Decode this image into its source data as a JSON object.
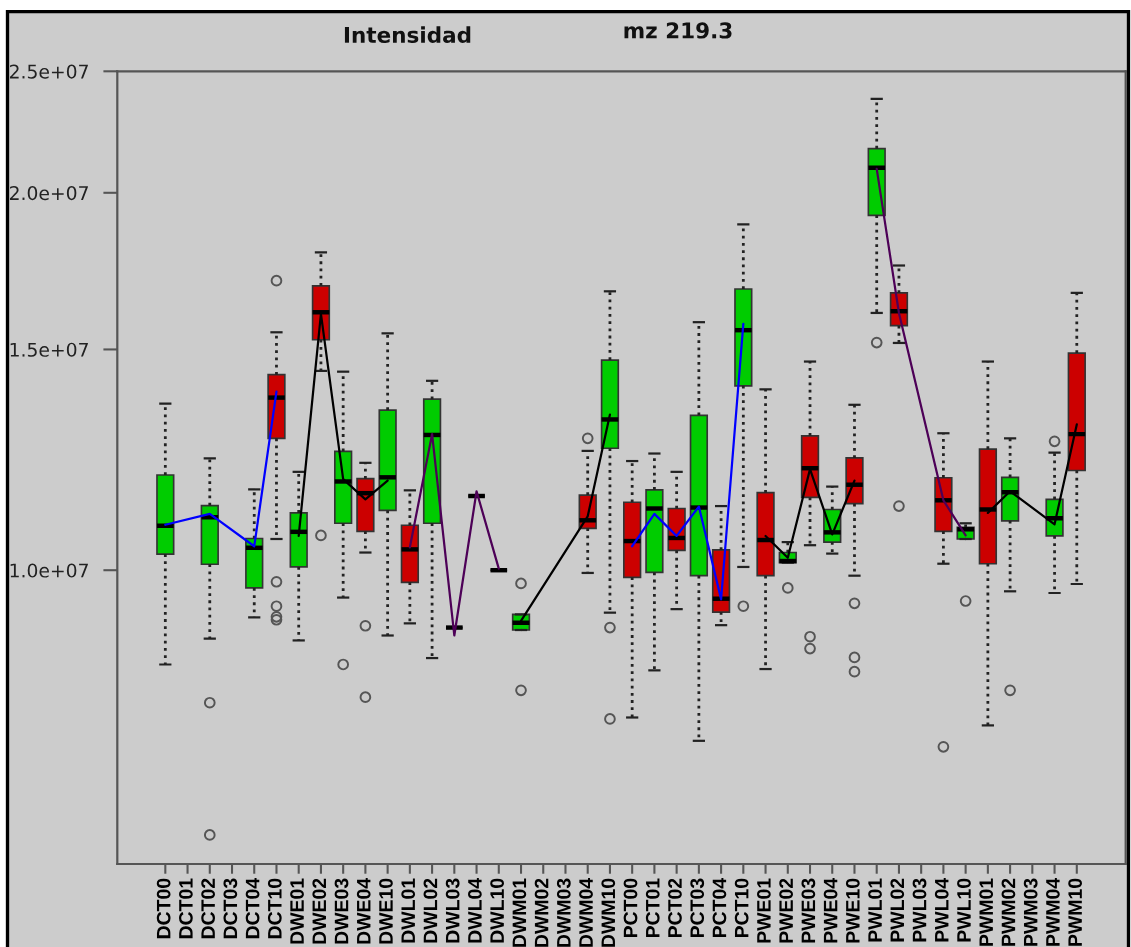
{
  "chart_data": {
    "type": "box",
    "title": "Intensidad",
    "subtitle": "mz 219.3",
    "categories": [
      "DCT00",
      "DCT01",
      "DCT02",
      "DCT03",
      "DCT04",
      "DCT10",
      "DWE01",
      "DWE02",
      "DWE03",
      "DWE04",
      "DWE10",
      "DWL01",
      "DWL02",
      "DWL03",
      "DWL04",
      "DWL10",
      "DWM01",
      "DWM02",
      "DWM03",
      "DWM04",
      "DWM10",
      "PCT00",
      "PCT01",
      "PCT02",
      "PCT03",
      "PCT04",
      "PCT10",
      "PWE01",
      "PWE02",
      "PWE03",
      "PWE04",
      "PWE10",
      "PWL01",
      "PWL02",
      "PWL03",
      "PWL04",
      "PWL10",
      "PWM01",
      "PWM02",
      "PWM03",
      "PWM04",
      "PWM10"
    ],
    "log": true,
    "ylim": [
      5830000,
      25000000
    ],
    "yticks": [
      {
        "value": 10000000,
        "label": "1.0e+07"
      },
      {
        "value": 15000000,
        "label": "1.5e+07"
      },
      {
        "value": 20000000,
        "label": "2.0e+07"
      },
      {
        "value": 25000000,
        "label": "2.5e+07"
      }
    ],
    "series": [
      {
        "colors": [
          "#00cc00",
          null,
          "#00cc00",
          null,
          "#00cc00",
          "#cc0000",
          "#00cc00",
          "#cc0000",
          "#00cc00",
          "#cc0000",
          "#00cc00",
          "#cc0000",
          "#00cc00",
          null,
          null,
          null,
          "#00cc00",
          null,
          null,
          "#cc0000",
          "#00cc00",
          "#cc0000",
          "#00cc00",
          "#cc0000",
          "#00cc00",
          "#cc0000",
          "#00cc00",
          "#cc0000",
          "#00cc00",
          "#cc0000",
          "#00cc00",
          "#cc0000",
          "#00cc00",
          "#cc0000",
          null,
          "#cc0000",
          "#00cc00",
          "#cc0000",
          "#00cc00",
          null,
          "#00cc00",
          "#cc0000"
        ],
        "boxes": [
          {
            "low": 8410000,
            "q1": 10300000,
            "median": 10850000,
            "q3": 11910000,
            "high": 13580000
          },
          null,
          {
            "low": 8820000,
            "q1": 10110000,
            "median": 11020000,
            "q3": 11260000,
            "high": 12280000,
            "outliers": [
              7840000,
              6150000
            ]
          },
          null,
          {
            "low": 9170000,
            "q1": 9680000,
            "median": 10420000,
            "q3": 10600000,
            "high": 11600000
          },
          {
            "low": 10590000,
            "q1": 12740000,
            "median": 13730000,
            "q3": 14320000,
            "high": 15480000,
            "outliers": [
              17020000,
              9790000,
              9360000,
              9180000,
              9130000
            ]
          },
          {
            "low": 8790000,
            "q1": 10060000,
            "median": 10730000,
            "q3": 11110000,
            "high": 11980000
          },
          {
            "low": 14420000,
            "q1": 15270000,
            "median": 16060000,
            "q3": 16860000,
            "high": 17930000,
            "outliers": [
              10660000
            ]
          },
          {
            "low": 9510000,
            "q1": 10900000,
            "median": 11770000,
            "q3": 12440000,
            "high": 14400000,
            "outliers": [
              8410000
            ]
          },
          {
            "low": 10330000,
            "q1": 10740000,
            "median": 11520000,
            "q3": 11830000,
            "high": 12180000,
            "outliers": [
              9030000,
              7920000
            ]
          },
          {
            "low": 8870000,
            "q1": 11160000,
            "median": 11860000,
            "q3": 13420000,
            "high": 15450000
          },
          {
            "low": 9070000,
            "q1": 9780000,
            "median": 10390000,
            "q3": 10860000,
            "high": 11580000
          },
          {
            "low": 8510000,
            "q1": 10900000,
            "median": 12820000,
            "q3": 13690000,
            "high": 14160000
          },
          {
            "low": 9000000,
            "q1": 9000000,
            "median": 9000000,
            "q3": 9000000,
            "high": 9000000
          },
          {
            "low": 11460000,
            "q1": 11460000,
            "median": 11460000,
            "q3": 11460000,
            "high": 11460000
          },
          {
            "low": 10000000,
            "q1": 10000000,
            "median": 10000000,
            "q3": 10000000,
            "high": 10000000
          },
          {
            "low": 8960000,
            "q1": 8960000,
            "median": 9080000,
            "q3": 9220000,
            "high": 9220000,
            "outliers": [
              9760000,
              8020000
            ]
          },
          null,
          null,
          {
            "low": 9950000,
            "q1": 10800000,
            "median": 10960000,
            "q3": 11480000,
            "high": 12450000,
            "outliers": [
              12740000
            ]
          },
          {
            "low": 9250000,
            "q1": 12510000,
            "median": 13190000,
            "q3": 14710000,
            "high": 16690000,
            "outliers": [
              9000000,
              7610000
            ]
          },
          {
            "low": 7630000,
            "q1": 9870000,
            "median": 10550000,
            "q3": 11330000,
            "high": 12220000
          },
          {
            "low": 8320000,
            "q1": 9960000,
            "median": 11200000,
            "q3": 11590000,
            "high": 12390000
          },
          {
            "low": 9310000,
            "q1": 10370000,
            "median": 10610000,
            "q3": 11200000,
            "high": 11980000
          },
          {
            "low": 7310000,
            "q1": 9900000,
            "median": 11220000,
            "q3": 13290000,
            "high": 15770000
          },
          {
            "low": 9040000,
            "q1": 9260000,
            "median": 9490000,
            "q3": 10380000,
            "high": 11250000
          },
          {
            "low": 10060000,
            "q1": 14030000,
            "median": 15540000,
            "q3": 16760000,
            "high": 18870000,
            "outliers": [
              9360000
            ]
          },
          {
            "low": 8340000,
            "q1": 9900000,
            "median": 10570000,
            "q3": 11530000,
            "high": 13940000
          },
          {
            "low": 10140000,
            "q1": 10140000,
            "median": 10170000,
            "q3": 10330000,
            "high": 10530000,
            "outliers": [
              9680000
            ]
          },
          {
            "low": 10470000,
            "q1": 11430000,
            "median": 12060000,
            "q3": 12800000,
            "high": 14670000,
            "outliers": [
              8850000,
              8660000
            ]
          },
          {
            "low": 10310000,
            "q1": 10530000,
            "median": 10720000,
            "q3": 11180000,
            "high": 11660000
          },
          {
            "low": 9900000,
            "q1": 11300000,
            "median": 11700000,
            "q3": 12290000,
            "high": 13550000,
            "outliers": [
              9410000,
              8520000,
              8300000
            ]
          },
          {
            "low": 16040000,
            "q1": 19190000,
            "median": 20940000,
            "q3": 21690000,
            "high": 23770000,
            "outliers": [
              15190000
            ]
          },
          {
            "low": 15180000,
            "q1": 15670000,
            "median": 16090000,
            "q3": 16640000,
            "high": 17500000,
            "outliers": [
              11250000
            ]
          },
          null,
          {
            "low": 10120000,
            "q1": 10740000,
            "median": 11370000,
            "q3": 11850000,
            "high": 12860000,
            "outliers": [
              7230000
            ]
          },
          {
            "low": 10590000,
            "q1": 10590000,
            "median": 10780000,
            "q3": 10820000,
            "high": 10900000,
            "outliers": [
              9450000
            ]
          },
          {
            "low": 7520000,
            "q1": 10120000,
            "median": 11180000,
            "q3": 12490000,
            "high": 14670000
          },
          {
            "low": 9620000,
            "q1": 10950000,
            "median": 11540000,
            "q3": 11860000,
            "high": 12740000,
            "outliers": [
              8020000
            ]
          },
          null,
          {
            "low": 9590000,
            "q1": 10650000,
            "median": 11000000,
            "q3": 11390000,
            "high": 12410000,
            "outliers": [
              12670000
            ]
          },
          {
            "low": 9750000,
            "q1": 12010000,
            "median": 12840000,
            "q3": 14900000,
            "high": 16640000
          }
        ]
      },
      {
        "type": "line",
        "color": "#0000ff",
        "x": [
          "DCT00",
          "DCT02",
          "DCT04",
          "DCT10"
        ],
        "values": [
          10870000,
          11090000,
          10450000,
          13880000
        ]
      },
      {
        "type": "line",
        "color": "#000000",
        "x": [
          "DWE01",
          "DWE02",
          "DWE03",
          "DWE04",
          "DWE10"
        ],
        "values": [
          10650000,
          16010000,
          11820000,
          11390000,
          11790000
        ]
      },
      {
        "type": "line",
        "color": "#4d0057",
        "x": [
          "DWL01",
          "DWL02",
          "DWL03",
          "DWL04",
          "DWL10"
        ],
        "values": [
          10430000,
          12840000,
          8870000,
          11560000,
          10030000
        ]
      },
      {
        "type": "line",
        "color": "#000000",
        "x": [
          "DWM01",
          "DWM04",
          "DWM10"
        ],
        "values": [
          9110000,
          11040000,
          13310000
        ]
      },
      {
        "type": "line",
        "color": "#0000ff",
        "x": [
          "PCT00",
          "PCT01",
          "PCT02",
          "PCT03",
          "PCT04",
          "PCT10"
        ],
        "values": [
          10450000,
          11090000,
          10650000,
          11240000,
          9480000,
          15720000
        ]
      },
      {
        "type": "line",
        "color": "#000000",
        "x": [
          "PWE01",
          "PWE02",
          "PWE03",
          "PWE04",
          "PWE10"
        ],
        "values": [
          10650000,
          10230000,
          12040000,
          10680000,
          11790000
        ]
      },
      {
        "type": "line",
        "color": "#4d0057",
        "x": [
          "PWL01",
          "PWL02",
          "PWL04",
          "PWL10"
        ],
        "values": [
          20900000,
          16040000,
          11370000,
          10660000
        ]
      },
      {
        "type": "line",
        "color": "#000000",
        "x": [
          "PWM01",
          "PWM02",
          "PWM04",
          "PWM10"
        ],
        "values": [
          11110000,
          11560000,
          10880000,
          13070000
        ]
      }
    ]
  }
}
